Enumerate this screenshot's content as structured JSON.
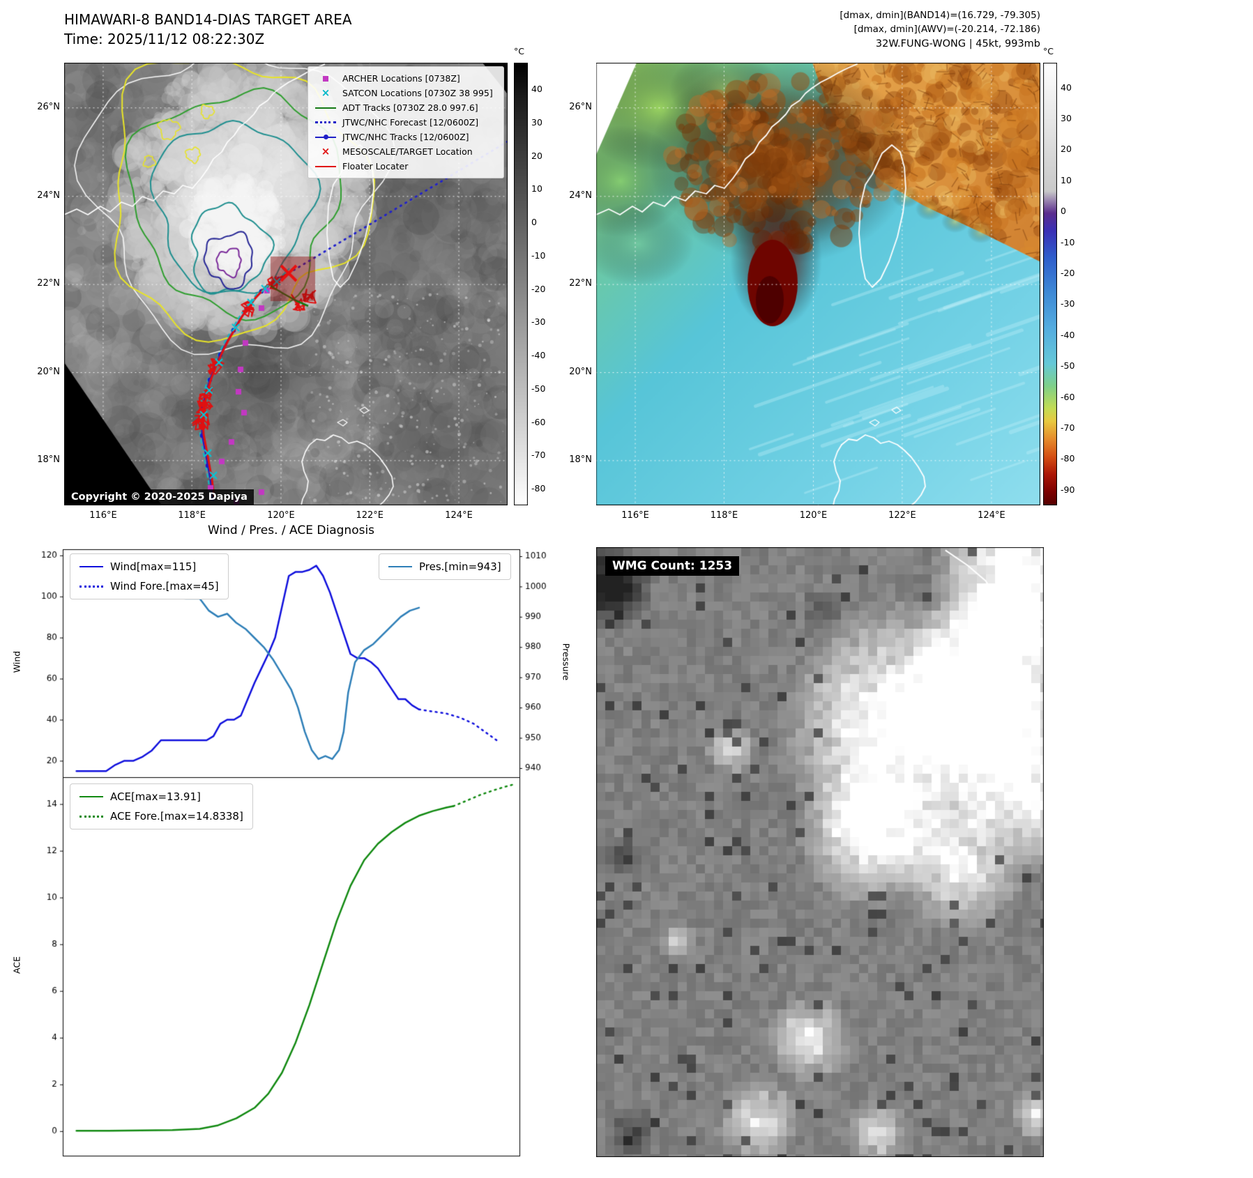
{
  "header": {
    "tl_title": "HIMAWARI-8 BAND14-DIAS TARGET AREA",
    "tl_time": "Time: 2025/11/12 08:22:30Z",
    "tr_line1": "[dmax, dmin](BAND14)=(16.729, -79.305)",
    "tr_line2": "[dmax, dmin](AWV)=(-20.214, -72.186)",
    "tr_line3": "32W.FUNG-WONG | 45kt, 993mb"
  },
  "ir_map": {
    "legend": [
      {
        "label": "ARCHER Locations [0738Z]",
        "marker": "square",
        "color": "#c238c2"
      },
      {
        "label": "SATCON Locations [0730Z 38 995]",
        "marker": "x",
        "color": "#00b8c8"
      },
      {
        "label": "ADT Tracks [0730Z 28.0 997.6]",
        "marker": "line",
        "color": "#157a15"
      },
      {
        "label": "JTWC/NHC Forecast [12/0600Z]",
        "marker": "dotted",
        "color": "#2020c8"
      },
      {
        "label": "JTWC/NHC Tracks [12/0600Z]",
        "marker": "linedot",
        "color": "#2020c8"
      },
      {
        "label": "MESOSCALE/TARGET Location",
        "marker": "x",
        "color": "#e01010"
      },
      {
        "label": "Floater Locater",
        "marker": "line",
        "color": "#e01010"
      }
    ],
    "lat_ticks": [
      "26°N",
      "24°N",
      "22°N",
      "20°N",
      "18°N"
    ],
    "lon_ticks": [
      "116°E",
      "118°E",
      "120°E",
      "122°E",
      "124°E"
    ],
    "colorbar": {
      "unit": "°C",
      "ticks": [
        40,
        30,
        20,
        10,
        0,
        -10,
        -20,
        -30,
        -40,
        -50,
        -60,
        -70,
        -80
      ],
      "stops": [
        [
          0,
          "#000000"
        ],
        [
          0.08,
          "#1c1c1c"
        ],
        [
          1,
          "#ffffff"
        ]
      ]
    },
    "copyright": "Copyright © 2020-2025 Dapiya"
  },
  "awv_map": {
    "lat_ticks": [
      "26°N",
      "24°N",
      "22°N",
      "20°N",
      "18°N"
    ],
    "lon_ticks": [
      "116°E",
      "118°E",
      "120°E",
      "122°E",
      "124°E"
    ],
    "colorbar": {
      "unit": "°C",
      "ticks": [
        40,
        30,
        20,
        10,
        0,
        -10,
        -20,
        -30,
        -40,
        -50,
        -60,
        -70,
        -80,
        -90
      ],
      "stops": [
        [
          0,
          "#ffffff"
        ],
        [
          0.29,
          "#c9c9c9"
        ],
        [
          0.34,
          "#5b2d8e"
        ],
        [
          0.38,
          "#3a30b6"
        ],
        [
          0.44,
          "#2f5ecc"
        ],
        [
          0.52,
          "#3f8ad6"
        ],
        [
          0.6,
          "#55ade0"
        ],
        [
          0.68,
          "#66c9d8"
        ],
        [
          0.73,
          "#7fd08a"
        ],
        [
          0.78,
          "#c2dc55"
        ],
        [
          0.81,
          "#e8c940"
        ],
        [
          0.85,
          "#e68c2c"
        ],
        [
          0.89,
          "#d65014"
        ],
        [
          0.93,
          "#ac1606"
        ],
        [
          0.97,
          "#7c0000"
        ],
        [
          1,
          "#540000"
        ]
      ]
    }
  },
  "wmg": {
    "label": "WMG Count: 1253"
  },
  "chart_data": [
    {
      "type": "line",
      "title": "Wind / Pres. / ACE Diagnosis",
      "ylabel_left": "Wind",
      "ylabel_right": "Pressure",
      "ylim_left": [
        12,
        123
      ],
      "yticks_left": [
        20,
        40,
        60,
        80,
        100,
        120
      ],
      "ylim_right": [
        937,
        1012.3
      ],
      "yticks_right": [
        940,
        950,
        960,
        970,
        980,
        990,
        1000,
        1010
      ],
      "legend_left": [
        {
          "label": "Wind[max=115]",
          "color": "#1010dd",
          "style": "solid"
        },
        {
          "label": "Wind Fore.[max=45]",
          "color": "#1010dd",
          "style": "dotted"
        }
      ],
      "legend_right": [
        {
          "label": "Pres.[min=943]",
          "color": "#2e7fb8",
          "style": "solid"
        }
      ],
      "series": [
        {
          "name": "Wind",
          "axis": "left",
          "color": "#1010dd",
          "style": "solid",
          "x": [
            0.03,
            0.055,
            0.075,
            0.095,
            0.115,
            0.135,
            0.155,
            0.175,
            0.195,
            0.215,
            0.235,
            0.255,
            0.275,
            0.295,
            0.315,
            0.33,
            0.345,
            0.36,
            0.375,
            0.39,
            0.405,
            0.42,
            0.435,
            0.45,
            0.465,
            0.48,
            0.495,
            0.51,
            0.525,
            0.54,
            0.555,
            0.57,
            0.585,
            0.6,
            0.615,
            0.63,
            0.645,
            0.66,
            0.675,
            0.69,
            0.705,
            0.72,
            0.735,
            0.75,
            0.765,
            0.78
          ],
          "values": [
            15,
            15,
            15,
            15,
            18,
            20,
            20,
            22,
            25,
            30,
            30,
            30,
            30,
            30,
            30,
            32,
            38,
            40,
            40,
            42,
            50,
            58,
            65,
            72,
            80,
            95,
            110,
            112,
            112,
            113,
            115,
            110,
            102,
            92,
            82,
            72,
            70,
            70,
            68,
            65,
            60,
            55,
            50,
            50,
            47,
            45
          ]
        },
        {
          "name": "Wind Fore.",
          "axis": "left",
          "color": "#1010dd",
          "style": "dotted",
          "x": [
            0.78,
            0.81,
            0.84,
            0.87,
            0.9,
            0.925,
            0.95
          ],
          "values": [
            45,
            44,
            43,
            41,
            38,
            34,
            30
          ]
        },
        {
          "name": "Pres.",
          "axis": "right",
          "color": "#2e7fb8",
          "style": "solid",
          "x": [
            0.03,
            0.06,
            0.09,
            0.12,
            0.15,
            0.18,
            0.21,
            0.24,
            0.27,
            0.3,
            0.32,
            0.34,
            0.36,
            0.38,
            0.4,
            0.42,
            0.44,
            0.46,
            0.48,
            0.5,
            0.515,
            0.53,
            0.545,
            0.56,
            0.575,
            0.59,
            0.605,
            0.615,
            0.625,
            0.64,
            0.66,
            0.68,
            0.7,
            0.72,
            0.74,
            0.76,
            0.78
          ],
          "values": [
            1004,
            1003,
            1002,
            1001,
            1000,
            1000,
            999,
            998,
            996,
            996,
            992,
            990,
            991,
            988,
            986,
            983,
            980,
            976,
            971,
            966,
            960,
            952,
            946,
            943,
            944,
            943,
            946,
            952,
            965,
            975,
            979,
            981,
            984,
            987,
            990,
            992,
            993
          ]
        }
      ]
    },
    {
      "type": "line",
      "ylabel": "ACE",
      "ylim": [
        -1.05,
        15.15
      ],
      "yticks": [
        0,
        2,
        4,
        6,
        8,
        10,
        12,
        14
      ],
      "legend": [
        {
          "label": "ACE[max=13.91]",
          "color": "#128a12",
          "style": "solid"
        },
        {
          "label": "ACE Fore.[max=14.8338]",
          "color": "#128a12",
          "style": "dotted"
        }
      ],
      "series": [
        {
          "name": "ACE",
          "axis": "left",
          "color": "#128a12",
          "style": "solid",
          "x": [
            0.03,
            0.1,
            0.17,
            0.24,
            0.3,
            0.34,
            0.38,
            0.42,
            0.45,
            0.48,
            0.51,
            0.54,
            0.57,
            0.6,
            0.63,
            0.66,
            0.69,
            0.72,
            0.75,
            0.78,
            0.81,
            0.84,
            0.855
          ],
          "values": [
            0.02,
            0.02,
            0.03,
            0.05,
            0.1,
            0.25,
            0.55,
            1.0,
            1.6,
            2.5,
            3.8,
            5.4,
            7.2,
            9.0,
            10.5,
            11.6,
            12.3,
            12.8,
            13.2,
            13.5,
            13.7,
            13.85,
            13.91
          ]
        },
        {
          "name": "ACE Fore.",
          "axis": "left",
          "color": "#128a12",
          "style": "dotted",
          "x": [
            0.855,
            0.885,
            0.915,
            0.945,
            0.97,
            0.985
          ],
          "values": [
            13.91,
            14.15,
            14.4,
            14.6,
            14.75,
            14.83
          ]
        }
      ]
    }
  ]
}
